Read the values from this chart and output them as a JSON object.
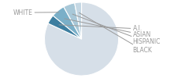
{
  "labels": [
    "WHITE",
    "A.I.",
    "ASIAN",
    "HISPANIC",
    "BLACK"
  ],
  "values": [
    82,
    4,
    6,
    5,
    3
  ],
  "colors": [
    "#d6dfe8",
    "#3d7ea0",
    "#7aafc8",
    "#a8c8d8",
    "#c5d8e4"
  ],
  "background": "#ffffff",
  "figsize": [
    2.4,
    1.0
  ],
  "dpi": 100,
  "text_color": "#999999",
  "line_color": "#999999",
  "font_size": 5.5,
  "edge_color": "#ffffff",
  "edge_lw": 0.8
}
